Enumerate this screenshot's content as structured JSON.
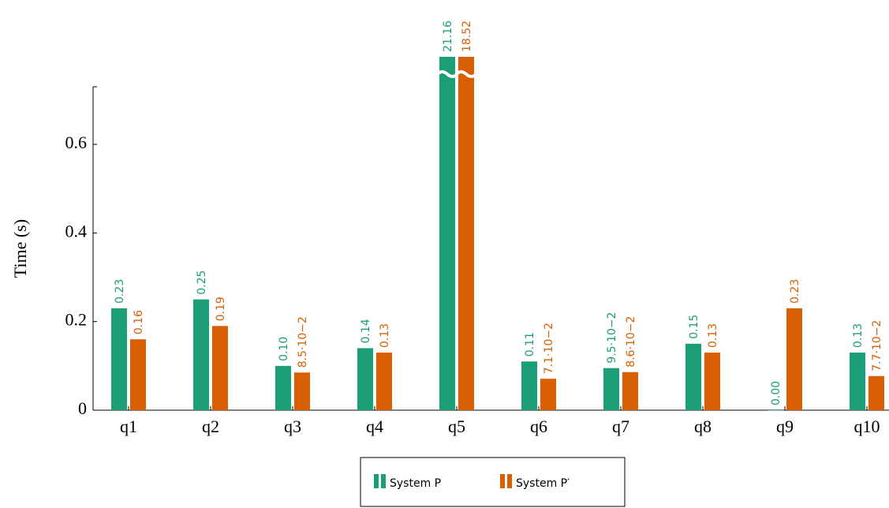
{
  "chart_data": {
    "type": "bar",
    "ylabel": "Time (s)",
    "categories": [
      "q1",
      "q2",
      "q3",
      "q4",
      "q5",
      "q6",
      "q7",
      "q8",
      "q9",
      "q10"
    ],
    "series": [
      {
        "name": "System P",
        "color": "#1b9e77",
        "values": [
          0.23,
          0.25,
          0.1,
          0.14,
          21.16,
          0.11,
          0.095,
          0.15,
          0.0,
          0.13
        ],
        "value_labels": [
          "0.23",
          "0.25",
          "0.10",
          "0.14",
          "21.16",
          "0.11",
          "9.5·10−2",
          "0.15",
          "0.00",
          "0.13"
        ]
      },
      {
        "name": "System P′",
        "color": "#d95f02",
        "values": [
          0.16,
          0.19,
          0.085,
          0.13,
          18.52,
          0.071,
          0.086,
          0.13,
          0.23,
          0.077
        ],
        "value_labels": [
          "0.16",
          "0.19",
          "8.5·10−2",
          "0.13",
          "18.52",
          "7.1·10−2",
          "8.6·10−2",
          "0.13",
          "0.23",
          "7.7·10−2"
        ]
      }
    ],
    "ylim": [
      0,
      0.73
    ],
    "yticks": [
      0,
      0.2,
      0.4,
      0.6
    ],
    "legend": "bottom"
  }
}
